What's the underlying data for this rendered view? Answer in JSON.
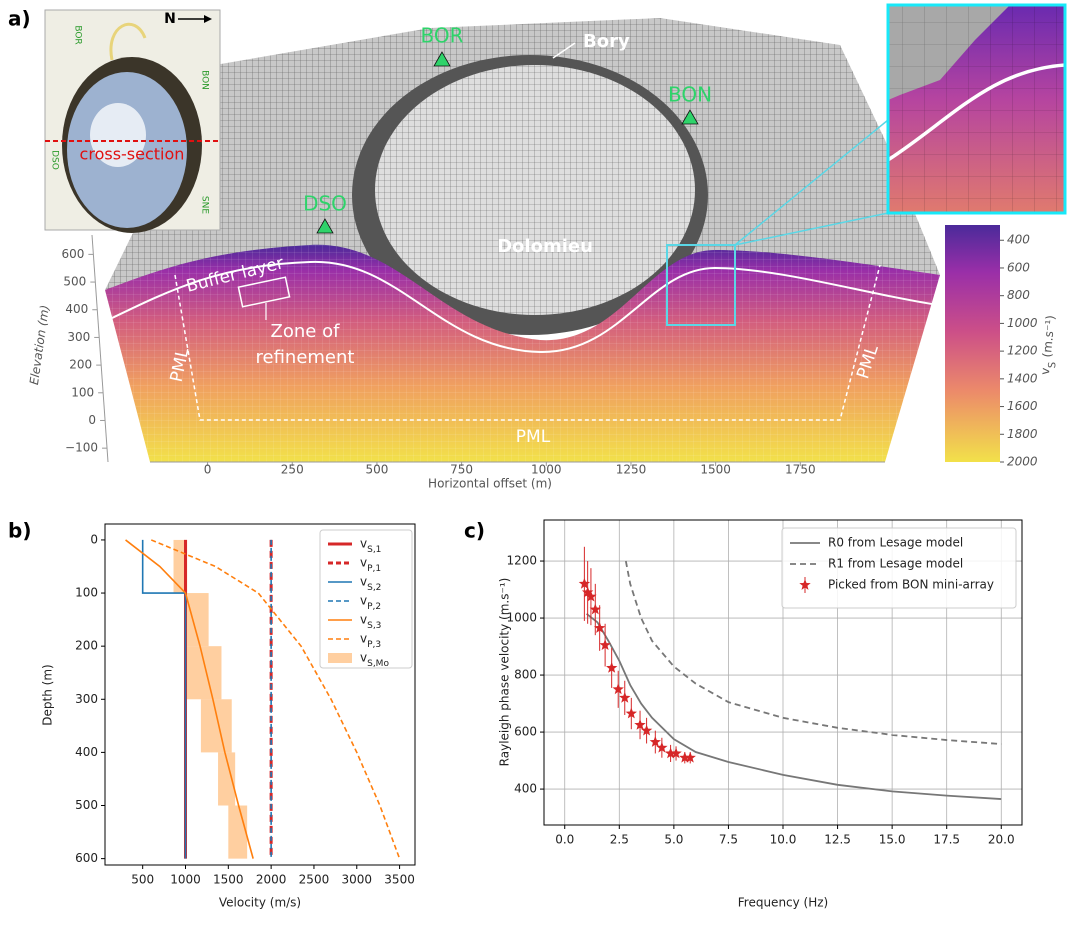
{
  "panel_a": {
    "label": "a)",
    "inset_map": {
      "north": "N",
      "stations": [
        "BOR",
        "BON",
        "DSO",
        "SNE"
      ],
      "section": "cross-section"
    },
    "stations": [
      "BOR",
      "BON",
      "DSO"
    ],
    "features": {
      "summit": "Bory",
      "crater": "Dolomieu"
    },
    "annotations": {
      "buffer": "Buffer layer",
      "refinement": [
        "Zone of",
        "refinement"
      ],
      "pml": "PML"
    },
    "y_axis": {
      "label": "Elevation (m)",
      "ylim": [
        -150,
        670
      ],
      "yticks": [
        {
          "value": -100,
          "label": "−100"
        },
        0,
        100,
        200,
        300,
        400,
        500,
        600
      ]
    },
    "x_axis": {
      "label": "Horizontal offset (m)",
      "xlim": [
        -170,
        2000
      ],
      "xticks": [
        0,
        250,
        500,
        750,
        1000,
        1250,
        1500,
        1750
      ]
    },
    "colorbar": {
      "symbol": "v",
      "subscript": "S",
      "unit": "(m.s⁻¹)",
      "clim": [
        290,
        2000
      ],
      "ticks": [
        400,
        600,
        800,
        1000,
        1200,
        1400,
        1600,
        1800,
        2000
      ]
    }
  },
  "chart_data": [
    {
      "type": "line",
      "panel_label": "b)",
      "xlabel": "Velocity (m/s)",
      "ylabel": "Depth (m)",
      "xlim": [
        60,
        3680
      ],
      "ylim": [
        -30,
        612
      ],
      "y_inverted": true,
      "xticks": [
        500,
        1000,
        1500,
        2000,
        2500,
        3000,
        3500
      ],
      "yticks": [
        0,
        100,
        200,
        300,
        400,
        500,
        600
      ],
      "legend": "upper right",
      "series": [
        {
          "name": "v",
          "subscript": "S,1",
          "color": "#d62728",
          "line_style": "solid",
          "weight": "bold",
          "x": [
            1000,
            1000
          ],
          "y": [
            0,
            600
          ]
        },
        {
          "name": "v",
          "subscript": "P,1",
          "color": "#d62728",
          "line_style": "dashed",
          "weight": "bold",
          "x": [
            2000,
            2000
          ],
          "y": [
            0,
            600
          ]
        },
        {
          "name": "v",
          "subscript": "S,2",
          "color": "#1f77b4",
          "line_style": "solid",
          "weight": "normal",
          "x": [
            500,
            500,
            1000,
            1000
          ],
          "y": [
            0,
            100,
            100,
            600
          ]
        },
        {
          "name": "v",
          "subscript": "P,2",
          "color": "#1f77b4",
          "line_style": "dashed",
          "weight": "normal",
          "x": [
            2000,
            2000
          ],
          "y": [
            0,
            600
          ]
        },
        {
          "name": "v",
          "subscript": "S,3",
          "color": "#ff7f0e",
          "line_style": "solid",
          "weight": "normal",
          "x": [
            300,
            700,
            1000,
            1170,
            1320,
            1460,
            1620,
            1790
          ],
          "y": [
            0,
            50,
            100,
            200,
            300,
            400,
            500,
            600
          ]
        },
        {
          "name": "v",
          "subscript": "P,3",
          "color": "#ff7f0e",
          "line_style": "dashed",
          "weight": "normal",
          "x": [
            600,
            1350,
            1850,
            2350,
            2700,
            3000,
            3270,
            3500
          ],
          "y": [
            0,
            50,
            100,
            200,
            300,
            400,
            500,
            600
          ]
        }
      ],
      "shaded": {
        "name": "v",
        "subscript": "S,Mo",
        "color": "#ffbb78",
        "depth_bins": [
          0,
          100,
          200,
          300,
          400,
          500,
          600
        ],
        "low": [
          860,
          1000,
          1000,
          1180,
          1380,
          1500
        ],
        "high": [
          1020,
          1270,
          1420,
          1540,
          1580,
          1720
        ]
      }
    },
    {
      "type": "line",
      "panel_label": "c)",
      "xlabel": "Frequency (Hz)",
      "ylabel": "Rayleigh phase velocity (m.s⁻¹)",
      "xlim": [
        -0.95,
        20.95
      ],
      "ylim": [
        274,
        1344
      ],
      "xticks": [
        {
          "value": 0,
          "label": "0.0"
        },
        {
          "value": 2.5,
          "label": "2.5"
        },
        {
          "value": 5,
          "label": "5.0"
        },
        {
          "value": 7.5,
          "label": "7.5"
        },
        {
          "value": 10,
          "label": "10.0"
        },
        {
          "value": 12.5,
          "label": "12.5"
        },
        {
          "value": 15,
          "label": "15.0"
        },
        {
          "value": 17.5,
          "label": "17.5"
        },
        {
          "value": 20,
          "label": "20.0"
        }
      ],
      "yticks": [
        400,
        600,
        800,
        1000,
        1200
      ],
      "grid": true,
      "legend": "upper right",
      "series": [
        {
          "name": "R0 from Lesage model",
          "color": "#777777",
          "line_style": "solid",
          "x": [
            1.0,
            1.5,
            2.0,
            2.5,
            3.0,
            3.5,
            4.0,
            5.0,
            6.0,
            7.5,
            10.0,
            12.5,
            15.0,
            17.5,
            20.0
          ],
          "values": [
            1015,
            985,
            920,
            850,
            765,
            700,
            650,
            575,
            530,
            495,
            450,
            415,
            392,
            377,
            365
          ]
        },
        {
          "name": "R1 from Lesage model",
          "color": "#777777",
          "line_style": "dashed",
          "x": [
            2.8,
            3.0,
            3.5,
            4.0,
            5.0,
            6.0,
            7.5,
            10.0,
            12.5,
            15.0,
            17.5,
            20.0
          ],
          "values": [
            1200,
            1120,
            1000,
            920,
            830,
            770,
            705,
            650,
            615,
            590,
            572,
            558
          ]
        },
        {
          "name": "Picked from BON mini-array",
          "color": "#d62728",
          "marker": "star",
          "x": [
            0.9,
            1.05,
            1.2,
            1.4,
            1.6,
            1.85,
            2.15,
            2.45,
            2.75,
            3.05,
            3.45,
            3.75,
            4.15,
            4.45,
            4.85,
            5.1,
            5.5,
            5.75
          ],
          "values": [
            1120,
            1090,
            1075,
            1030,
            965,
            905,
            825,
            750,
            720,
            665,
            625,
            605,
            565,
            545,
            525,
            525,
            510,
            510
          ],
          "errors": [
            130,
            110,
            100,
            90,
            80,
            75,
            70,
            65,
            60,
            55,
            50,
            45,
            40,
            35,
            30,
            25,
            20,
            20
          ]
        }
      ]
    }
  ]
}
